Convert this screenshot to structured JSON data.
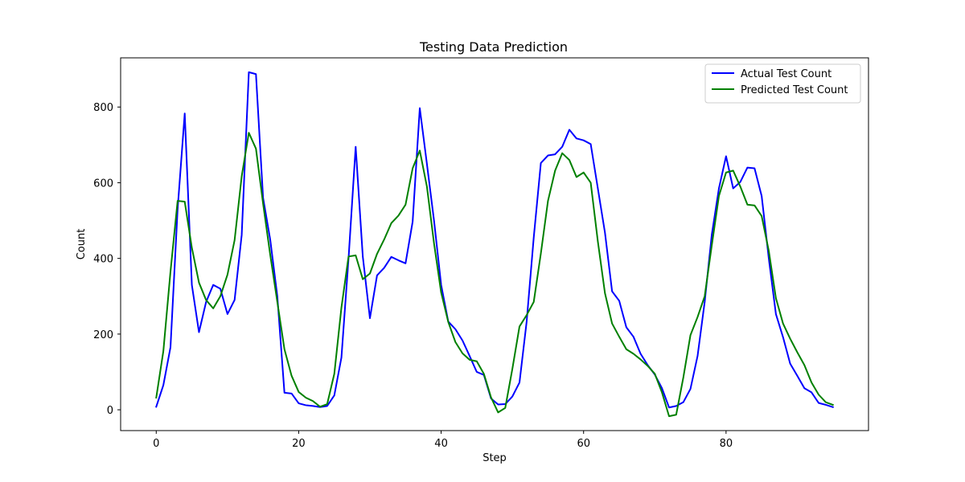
{
  "chart_data": {
    "type": "line",
    "title": "Testing Data Prediction",
    "xlabel": "Step",
    "ylabel": "Count",
    "xlim": [
      -5,
      100
    ],
    "ylim": [
      -55,
      930
    ],
    "xticks": [
      0,
      20,
      40,
      60,
      80
    ],
    "yticks": [
      0,
      200,
      400,
      600,
      800
    ],
    "grid": false,
    "legend_position": "top-right",
    "x": [
      0,
      1,
      2,
      3,
      4,
      5,
      6,
      7,
      8,
      9,
      10,
      11,
      12,
      13,
      14,
      15,
      16,
      17,
      18,
      19,
      20,
      21,
      22,
      23,
      24,
      25,
      26,
      27,
      28,
      29,
      30,
      31,
      32,
      33,
      34,
      35,
      36,
      37,
      38,
      39,
      40,
      41,
      42,
      43,
      44,
      45,
      46,
      47,
      48,
      49,
      50,
      51,
      52,
      53,
      54,
      55,
      56,
      57,
      58,
      59,
      60,
      61,
      62,
      63,
      64,
      65,
      66,
      67,
      68,
      69,
      70,
      71,
      72,
      73,
      74,
      75,
      76,
      77,
      78,
      79,
      80,
      81,
      82,
      83,
      84,
      85,
      86,
      87,
      88,
      89,
      90,
      91,
      92,
      93,
      94,
      95
    ],
    "series": [
      {
        "name": "Actual Test Count",
        "color": "#0000ff",
        "values": [
          8,
          65,
          165,
          530,
          783,
          330,
          205,
          285,
          330,
          320,
          253,
          290,
          462,
          892,
          887,
          560,
          450,
          300,
          45,
          43,
          17,
          12,
          10,
          7,
          10,
          38,
          138,
          400,
          695,
          405,
          242,
          355,
          375,
          404,
          395,
          387,
          497,
          797,
          650,
          500,
          330,
          233,
          213,
          183,
          142,
          100,
          92,
          30,
          14,
          15,
          35,
          72,
          232,
          455,
          652,
          672,
          675,
          695,
          740,
          717,
          712,
          702,
          585,
          468,
          313,
          288,
          218,
          193,
          148,
          118,
          93,
          57,
          6,
          10,
          20,
          55,
          142,
          285,
          463,
          585,
          670,
          585,
          602,
          640,
          638,
          565,
          400,
          253,
          192,
          122,
          90,
          57,
          46,
          18,
          13,
          7
        ]
      },
      {
        "name": "Predicted Test Count",
        "color": "#008000",
        "values": [
          32,
          155,
          365,
          552,
          550,
          428,
          336,
          290,
          268,
          300,
          357,
          448,
          617,
          732,
          690,
          545,
          410,
          285,
          160,
          90,
          47,
          32,
          23,
          8,
          15,
          95,
          270,
          405,
          408,
          345,
          360,
          412,
          450,
          493,
          513,
          542,
          638,
          685,
          590,
          440,
          310,
          232,
          179,
          149,
          132,
          128,
          95,
          33,
          -7,
          5,
          108,
          220,
          250,
          285,
          413,
          552,
          632,
          678,
          660,
          615,
          627,
          600,
          445,
          308,
          228,
          193,
          160,
          148,
          133,
          116,
          95,
          46,
          -17,
          -13,
          85,
          197,
          245,
          300,
          435,
          565,
          627,
          632,
          590,
          542,
          540,
          512,
          420,
          295,
          228,
          188,
          152,
          118,
          72,
          40,
          20,
          13
        ]
      }
    ]
  }
}
